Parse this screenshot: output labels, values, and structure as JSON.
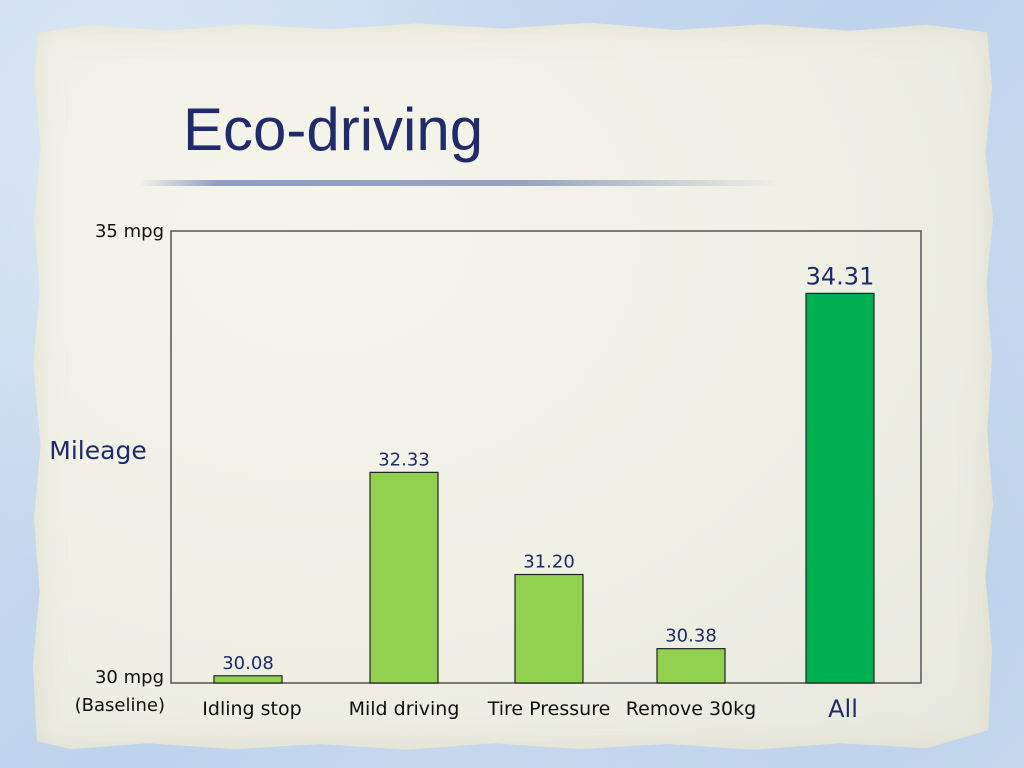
{
  "slide": {
    "title": "Eco-driving"
  },
  "chart_data": {
    "type": "bar",
    "title": "",
    "ylabel": "Mileage",
    "xlabel": "",
    "ylim": [
      30,
      35
    ],
    "yticks": [
      {
        "value": 35,
        "label": "35 mpg"
      },
      {
        "value": 30,
        "label": "30 mpg",
        "sublabel": "(Baseline)"
      }
    ],
    "categories": [
      "Idling stop",
      "Mild driving",
      "Tire Pressure",
      "Remove 30kg",
      "All"
    ],
    "values": [
      30.08,
      32.33,
      31.2,
      30.38,
      34.31
    ],
    "value_labels": [
      "30.08",
      "32.33",
      "31.20",
      "30.38",
      "34.31"
    ],
    "bar_colors": [
      "#92d050",
      "#92d050",
      "#92d050",
      "#92d050",
      "#00b050"
    ],
    "emphasized_index": 4,
    "grid": false,
    "legend": "none"
  }
}
